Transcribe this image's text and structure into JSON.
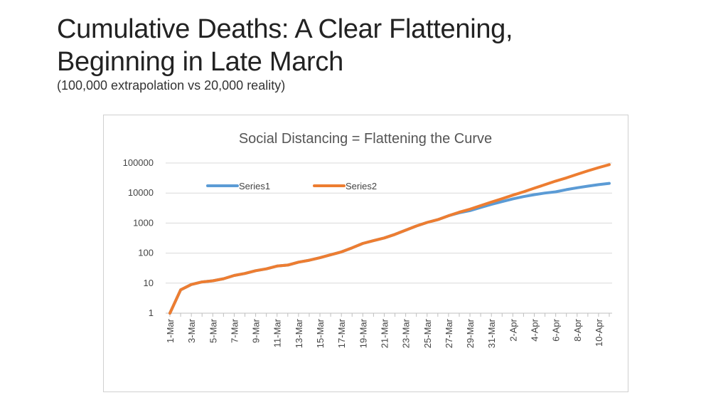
{
  "slide": {
    "title_line1": "Cumulative Deaths: A Clear Flattening,",
    "title_line2": "Beginning in Late March",
    "subtitle": "(100,000 extrapolation vs 20,000 reality)"
  },
  "chart_data": {
    "type": "line",
    "title": "Social Distancing = Flattening the Curve",
    "xlabel": "",
    "ylabel": "",
    "y_scale": "log",
    "ylim": [
      1,
      100000
    ],
    "y_ticks": [
      "1",
      "10",
      "100",
      "1000",
      "10000",
      "100000"
    ],
    "grid": true,
    "legend_position": "top",
    "x": [
      "1-Mar",
      "2-Mar",
      "3-Mar",
      "4-Mar",
      "5-Mar",
      "6-Mar",
      "7-Mar",
      "8-Mar",
      "9-Mar",
      "10-Mar",
      "11-Mar",
      "12-Mar",
      "13-Mar",
      "14-Mar",
      "15-Mar",
      "16-Mar",
      "17-Mar",
      "18-Mar",
      "19-Mar",
      "20-Mar",
      "21-Mar",
      "22-Mar",
      "23-Mar",
      "24-Mar",
      "25-Mar",
      "26-Mar",
      "27-Mar",
      "28-Mar",
      "29-Mar",
      "30-Mar",
      "31-Mar",
      "1-Apr",
      "2-Apr",
      "3-Apr",
      "4-Apr",
      "5-Apr",
      "6-Apr",
      "7-Apr",
      "8-Apr",
      "9-Apr",
      "10-Apr",
      "11-Apr"
    ],
    "x_tick_labels": [
      "1-Mar",
      "3-Mar",
      "5-Mar",
      "7-Mar",
      "9-Mar",
      "11-Mar",
      "13-Mar",
      "15-Mar",
      "17-Mar",
      "19-Mar",
      "21-Mar",
      "23-Mar",
      "25-Mar",
      "27-Mar",
      "29-Mar",
      "31-Mar",
      "2-Apr",
      "4-Apr",
      "6-Apr",
      "8-Apr",
      "10-Apr"
    ],
    "series": [
      {
        "name": "Series1",
        "color": "#5b9bd5",
        "values": [
          1,
          6,
          9,
          11,
          12,
          14,
          18,
          21,
          26,
          30,
          37,
          40,
          50,
          58,
          70,
          88,
          110,
          150,
          210,
          260,
          320,
          420,
          580,
          800,
          1050,
          1300,
          1750,
          2200,
          2600,
          3300,
          4200,
          5200,
          6400,
          7600,
          8800,
          10000,
          11000,
          13000,
          15000,
          17000,
          19000,
          21000
        ]
      },
      {
        "name": "Series2",
        "color": "#ed7d31",
        "values": [
          1,
          6,
          9,
          11,
          12,
          14,
          18,
          21,
          26,
          30,
          37,
          40,
          50,
          58,
          70,
          88,
          110,
          150,
          210,
          260,
          320,
          420,
          580,
          800,
          1050,
          1300,
          1750,
          2300,
          2900,
          3800,
          5000,
          6500,
          8500,
          11000,
          14500,
          19000,
          25000,
          32000,
          42000,
          55000,
          70000,
          88000
        ]
      }
    ]
  }
}
